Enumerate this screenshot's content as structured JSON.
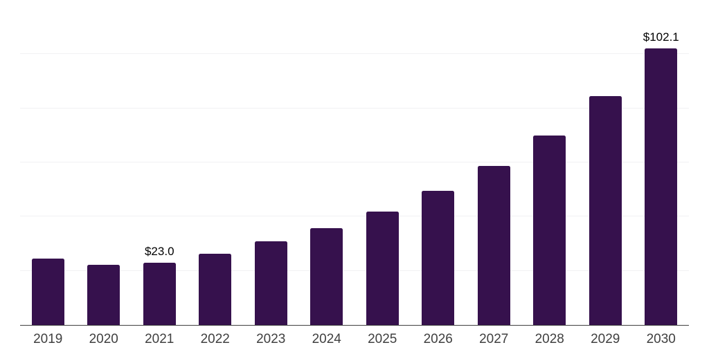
{
  "chart_data": {
    "type": "bar",
    "title": "",
    "xlabel": "",
    "ylabel": "",
    "categories": [
      "2019",
      "2020",
      "2021",
      "2022",
      "2023",
      "2024",
      "2025",
      "2026",
      "2027",
      "2028",
      "2029",
      "2030"
    ],
    "values": [
      24.5,
      22.1,
      23.0,
      26.3,
      30.8,
      35.7,
      41.8,
      49.5,
      58.7,
      70.0,
      84.4,
      102.1
    ],
    "value_labels": {
      "2021": "$23.0",
      "2030": "$102.1"
    },
    "ylim": [
      0,
      120
    ],
    "gridline_step": 20,
    "grid": "horizontal-only",
    "legend": "none",
    "y_axis_ticks_visible": false,
    "colors": {
      "bar": "#36114D",
      "gridline": "#f1f1f3",
      "axis_line": "#3f3f3f",
      "tick_label": "#3f3f3f",
      "value_label": "#000000",
      "background": "#ffffff"
    }
  }
}
